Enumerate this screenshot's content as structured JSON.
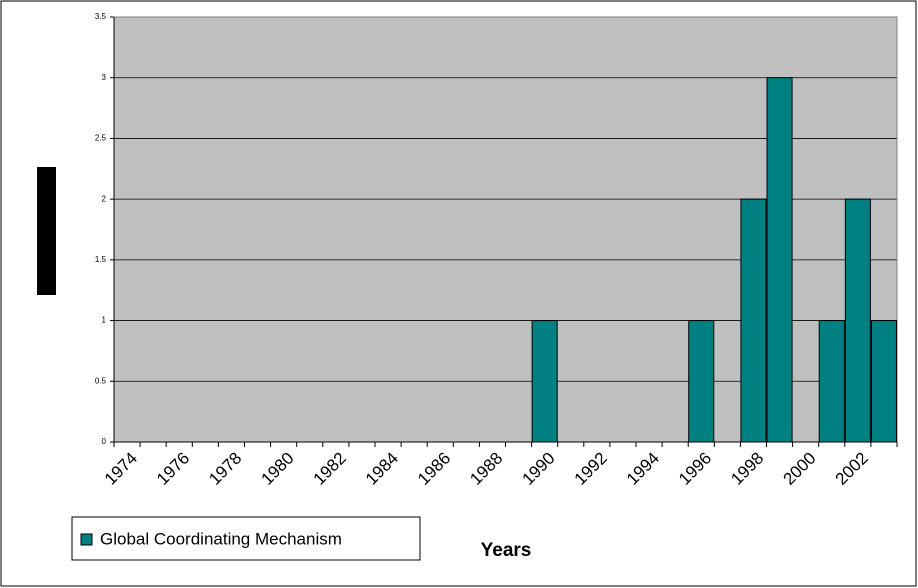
{
  "chart_data": {
    "type": "bar",
    "categories": [
      "1974",
      null,
      "1976",
      null,
      "1978",
      null,
      "1980",
      null,
      "1982",
      null,
      "1984",
      null,
      "1986",
      null,
      "1988",
      null,
      "1990",
      null,
      "1992",
      null,
      "1994",
      null,
      "1996",
      null,
      "1998",
      null,
      "2000",
      null,
      "2002",
      null
    ],
    "series": [
      {
        "name": "Global Coordinating Mechanism",
        "color": "#008080",
        "values": [
          0,
          0,
          0,
          0,
          0,
          0,
          0,
          0,
          0,
          0,
          0,
          0,
          0,
          0,
          0,
          0,
          1,
          0,
          0,
          0,
          0,
          0,
          1,
          0,
          2,
          3,
          0,
          1,
          2,
          1
        ]
      }
    ],
    "xlabel": "Years",
    "ylim": [
      0,
      3.5
    ],
    "yticks": [
      0,
      0.5,
      1,
      1.5,
      2,
      2.5,
      3,
      3.5
    ],
    "grid": true
  }
}
